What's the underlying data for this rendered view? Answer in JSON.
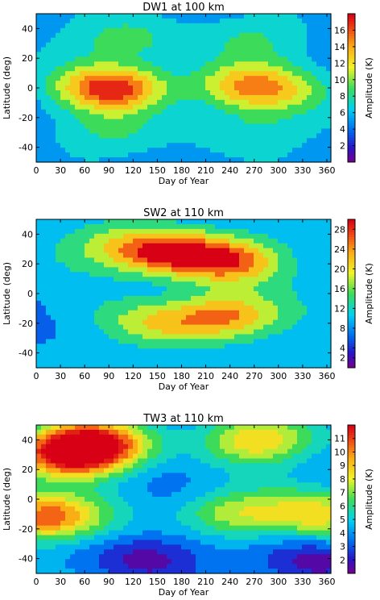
{
  "chart_data": [
    {
      "type": "heatmap",
      "title": "DW1 at 100 km",
      "xlabel": "Day of Year",
      "ylabel": "Latitude (deg)",
      "colorbar_label": "Amplitude (K)",
      "xlim": [
        0,
        365
      ],
      "ylim": [
        -50,
        50
      ],
      "xticks": [
        0,
        30,
        60,
        90,
        120,
        150,
        180,
        210,
        240,
        270,
        300,
        330,
        360
      ],
      "yticks": [
        -40,
        -20,
        0,
        20,
        40
      ],
      "colorbar_range": [
        0,
        18
      ],
      "colorbar_ticks": [
        2,
        4,
        6,
        8,
        10,
        12,
        14,
        16
      ],
      "colorscale": "rainbow",
      "contour_interval": 2,
      "features": [
        {
          "day": 95,
          "lat": 0,
          "amplitude": 17
        },
        {
          "day": 250,
          "lat": 2,
          "amplitude": 11
        },
        {
          "day": 290,
          "lat": -2,
          "amplitude": 10
        },
        {
          "day": 110,
          "lat": 33,
          "amplitude": 9
        },
        {
          "day": 270,
          "lat": 33,
          "amplitude": 8
        },
        {
          "day": 90,
          "lat": -30,
          "amplitude": 8
        },
        {
          "day": 265,
          "lat": -30,
          "amplitude": 8
        }
      ]
    },
    {
      "type": "heatmap",
      "title": "SW2 at 110 km",
      "xlabel": "Day of Year",
      "ylabel": "Latitude (deg)",
      "colorbar_label": "Amplitude (K)",
      "xlim": [
        0,
        365
      ],
      "ylim": [
        -50,
        50
      ],
      "xticks": [
        0,
        30,
        60,
        90,
        120,
        150,
        180,
        210,
        240,
        270,
        300,
        330,
        360
      ],
      "yticks": [
        -40,
        -20,
        0,
        20,
        40
      ],
      "colorbar_range": [
        0,
        30
      ],
      "colorbar_ticks": [
        2,
        4,
        8,
        12,
        16,
        20,
        24,
        28
      ],
      "colorscale": "rainbow",
      "contour_interval": 4,
      "features": [
        {
          "day": 155,
          "lat": 28,
          "amplitude": 28
        },
        {
          "day": 235,
          "lat": 22,
          "amplitude": 26
        },
        {
          "day": 235,
          "lat": -15,
          "amplitude": 25
        },
        {
          "day": 80,
          "lat": 32,
          "amplitude": 14
        },
        {
          "day": 150,
          "lat": -20,
          "amplitude": 18
        }
      ]
    },
    {
      "type": "heatmap",
      "title": "TW3 at 110 km",
      "xlabel": "Day of Year",
      "ylabel": "Latitude (deg)",
      "colorbar_label": "Amplitude (K)",
      "xlim": [
        0,
        365
      ],
      "ylim": [
        -50,
        50
      ],
      "xticks": [
        0,
        30,
        60,
        90,
        120,
        150,
        180,
        210,
        240,
        270,
        300,
        330,
        360
      ],
      "yticks": [
        -40,
        -20,
        0,
        20,
        40
      ],
      "colorbar_range": [
        1,
        12
      ],
      "colorbar_ticks": [
        2,
        3,
        4,
        5,
        6,
        7,
        8,
        9,
        10,
        11
      ],
      "colorscale": "rainbow",
      "contour_interval": 1,
      "features": [
        {
          "day": 45,
          "lat": 30,
          "amplitude": 11
        },
        {
          "day": 70,
          "lat": 38,
          "amplitude": 11
        },
        {
          "day": 10,
          "lat": -12,
          "amplitude": 11
        },
        {
          "day": 275,
          "lat": 40,
          "amplitude": 9
        },
        {
          "day": 245,
          "lat": -10,
          "amplitude": 8
        },
        {
          "day": 355,
          "lat": -10,
          "amplitude": 8
        },
        {
          "day": 135,
          "lat": -40,
          "amplitude": 1.5
        },
        {
          "day": 345,
          "lat": -42,
          "amplitude": 1.5
        }
      ]
    }
  ]
}
